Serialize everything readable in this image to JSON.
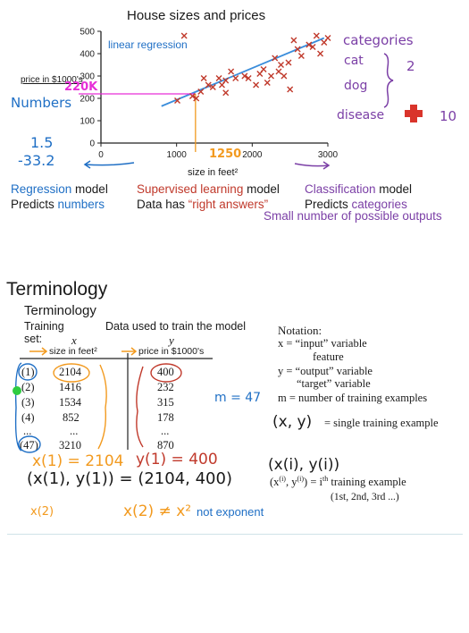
{
  "top_section": {
    "chart_data": {
      "type": "scatter",
      "title": "House sizes and prices",
      "xlabel": "size in feet²",
      "ylabel": "price in $1000's",
      "xlim": [
        0,
        3000
      ],
      "ylim": [
        0,
        500
      ],
      "x_ticks": [
        "0",
        "1000",
        "2000",
        "3000"
      ],
      "y_ticks": [
        "0",
        "100",
        "200",
        "300",
        "400",
        "500"
      ],
      "grid": false,
      "series": [
        {
          "name": "",
          "marker": "x",
          "color": "#c0392b",
          "points": [
            [
              1010,
              190
            ],
            [
              1100,
              480
            ],
            [
              1210,
              210
            ],
            [
              1260,
              200
            ],
            [
              1320,
              230
            ],
            [
              1360,
              290
            ],
            [
              1420,
              260
            ],
            [
              1480,
              250
            ],
            [
              1560,
              290
            ],
            [
              1600,
              260
            ],
            [
              1650,
              280
            ],
            [
              1720,
              320
            ],
            [
              1780,
              290
            ],
            [
              1900,
              300
            ],
            [
              1950,
              290
            ],
            [
              2050,
              260
            ],
            [
              2100,
              310
            ],
            [
              2150,
              330
            ],
            [
              2200,
              270
            ],
            [
              2250,
              300
            ],
            [
              2300,
              380
            ],
            [
              2350,
              320
            ],
            [
              2380,
              350
            ],
            [
              2420,
              300
            ],
            [
              2480,
              360
            ],
            [
              2500,
              240
            ],
            [
              2550,
              460
            ],
            [
              2600,
              420
            ],
            [
              2650,
              390
            ],
            [
              2750,
              440
            ],
            [
              2800,
              430
            ],
            [
              2850,
              480
            ],
            [
              2900,
              400
            ],
            [
              2950,
              450
            ],
            [
              3000,
              470
            ],
            [
              1650,
              225
            ]
          ]
        }
      ],
      "regression_line": {
        "label": "linear regression",
        "color": "#3a8ddb",
        "from": [
          800,
          165
        ],
        "to": [
          2950,
          470
        ]
      },
      "annotation": {
        "x": 1250,
        "y": 220,
        "x_label": "1250",
        "y_label": "220K"
      }
    },
    "handwritten": {
      "numbers_label": "Numbers",
      "val1": "1.5",
      "val2": "-33.2",
      "categories_label": "categories",
      "cat": "cat",
      "dog": "dog",
      "two": "2",
      "disease": "disease",
      "ten": "10"
    },
    "captions": {
      "regression_title": "Regression",
      "regression_suffix": " model",
      "regression_line2": "Predicts ",
      "regression_line2_em": "numbers",
      "supervised_title": "Supervised learning",
      "supervised_suffix": " model",
      "supervised_line2": "Data has ",
      "supervised_line2_em": "“right answers”",
      "classification_title": "Classification",
      "classification_suffix": " model",
      "classification_line2": "Predicts ",
      "classification_line2_em": "categories",
      "classification_line3": "Small number of possible outputs"
    },
    "colors": {
      "blue": "#1f6fc5",
      "red": "#c0392b",
      "purple": "#7b3fa6",
      "orange": "#f29a1f",
      "pink": "#e62fd7"
    }
  },
  "terminology_section": {
    "heading": "Terminology",
    "subheading": "Terminology",
    "training_set_label_1": "Training",
    "training_set_label_2": "set:",
    "data_used_label": "Data used to train the model",
    "x_var": "x",
    "y_var": "y",
    "x_unit": "size in feet²",
    "y_unit": "price in $1000's",
    "rows": [
      {
        "idx": "(1)",
        "x": "2104",
        "y": "400"
      },
      {
        "idx": "(2)",
        "x": "1416",
        "y": "232"
      },
      {
        "idx": "(3)",
        "x": "1534",
        "y": "315"
      },
      {
        "idx": "(4)",
        "x": "852",
        "y": "178"
      },
      {
        "idx": "...",
        "x": "...",
        "y": "..."
      },
      {
        "idx": "(47)",
        "x": "3210",
        "y": "870"
      }
    ],
    "m_label": "m = 47",
    "notation": {
      "title": "Notation:",
      "line1": "x = “input” variable",
      "line1b": "feature",
      "line2": "y = “output” variable",
      "line2b": "“target” variable",
      "line3": "m = number of training examples",
      "line4": "= single training example",
      "line5": "= i",
      "line5_sup": "th",
      "line5_suffix": " training example",
      "line6": "(1st, 2nd, 3rd ...)"
    },
    "handwritten": {
      "x1_eq": "x(1) = 2104",
      "y1_eq": "y(1) = 400",
      "pair_eq": "(x(1), y(1)) = (2104, 400)",
      "x2": "x(2)",
      "neq": "x(2) ≠ x²",
      "not_exponent": "not exponent",
      "xy_pair": "(x, y)",
      "xi_yi": "(x(i), y(i))"
    }
  }
}
